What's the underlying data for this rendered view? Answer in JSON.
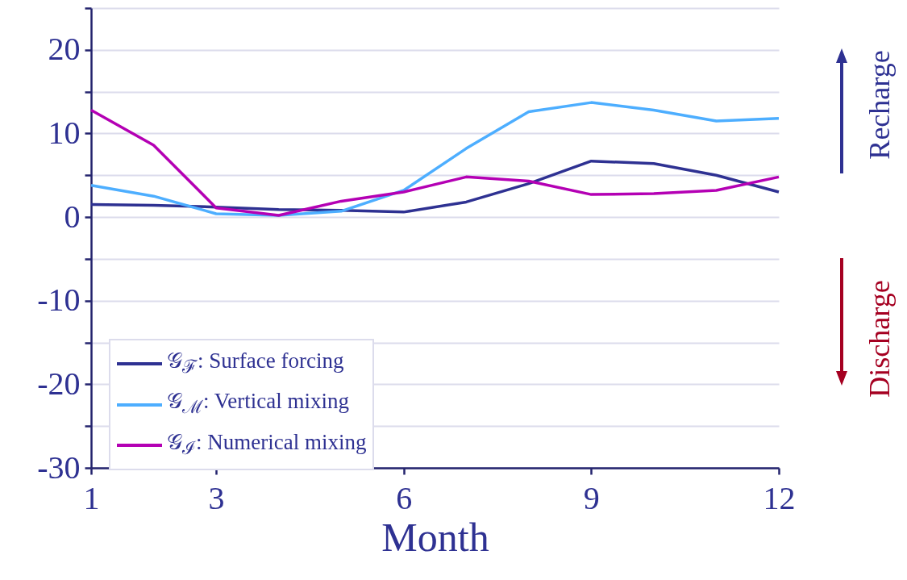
{
  "chart_data": {
    "type": "line",
    "xlabel": "Month",
    "x": [
      1,
      2,
      3,
      4,
      5,
      6,
      7,
      8,
      9,
      10,
      11,
      12
    ],
    "xlim": [
      1,
      12
    ],
    "xticks": [
      1,
      3,
      6,
      9,
      12
    ],
    "ylim": [
      -30,
      25
    ],
    "yticks": [
      -30,
      {
        "value": -25,
        "label": null
      },
      -20,
      {
        "value": -15,
        "label": null
      },
      -10,
      {
        "value": -5,
        "label": null
      },
      0,
      {
        "value": 5,
        "label": null
      },
      10,
      {
        "value": 15,
        "label": null
      },
      20,
      {
        "value": 25,
        "label": null
      }
    ],
    "grid": "y",
    "legend": "bottom left",
    "line_style": "solid",
    "marker": "none",
    "annotations": [
      "Recharge",
      "Discharge"
    ],
    "series": [
      {
        "name": "𝒢$_{ℱ}$: Surface forcing",
        "color": "#2e3192",
        "values": [
          1.5,
          1.4,
          1.2,
          0.9,
          0.8,
          0.6,
          1.8,
          4.0,
          6.7,
          6.4,
          5.0,
          3.0
        ]
      },
      {
        "name": "𝒢$_{ℳ}$: Vertical mixing",
        "color": "#4daeff",
        "values": [
          3.8,
          2.5,
          0.4,
          0.2,
          0.7,
          3.2,
          8.2,
          12.6,
          13.7,
          12.8,
          11.5,
          11.8
        ]
      },
      {
        "name": "𝒢$_{ℐ}$: Numerical mixing",
        "color": "#b400b4",
        "values": [
          12.8,
          8.6,
          1.1,
          0.2,
          1.9,
          3.0,
          4.8,
          4.3,
          2.7,
          2.8,
          3.2,
          4.8
        ]
      }
    ]
  }
}
